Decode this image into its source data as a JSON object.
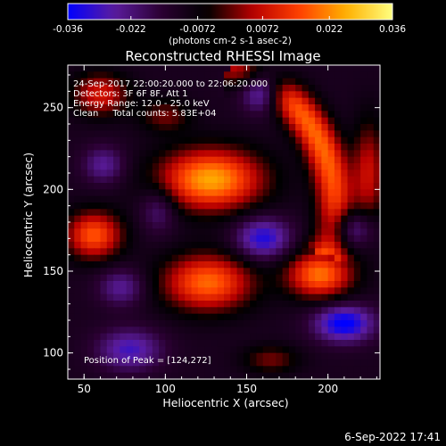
{
  "chart_data": {
    "type": "heatmap",
    "title": "Reconstructed RHESSI Image",
    "xlabel": "Heliocentric X (arcsec)",
    "ylabel": "Heliocentric Y (arcsec)",
    "xlim": [
      40,
      232
    ],
    "ylim": [
      84,
      276
    ],
    "xticks": [
      50,
      100,
      150,
      200
    ],
    "yticks": [
      100,
      150,
      200,
      250
    ],
    "colorbar": {
      "range": [
        -0.036,
        0.036
      ],
      "tick_labels": [
        "-0.036",
        "-0.022",
        "-0.0072",
        "0.0072",
        "0.022",
        "0.036"
      ],
      "tick_values": [
        -0.036,
        -0.022,
        -0.0072,
        0.0072,
        0.022,
        0.036
      ],
      "units_label": "(photons cm-2 s-1 asec-2)",
      "colormap": [
        "#0000ff",
        "#5b1c9e",
        "#2b0033",
        "#000000",
        "#b80000",
        "#ff4000",
        "#ffb000",
        "#ffff80"
      ]
    },
    "annotations": [
      "24-Sep-2017 22:00:20.000 to 22:06:20.000",
      "Detectors: 3F 6F 8F, Att 1",
      "Energy Range: 12.0 - 25.0 keV",
      "Clean     Total counts: 5.83E+04"
    ],
    "peak_label": "Position of Peak = [124,272]",
    "peak": {
      "x": 124,
      "y": 272
    },
    "sources": [
      {
        "x": 128,
        "y": 206,
        "sx": 22,
        "sy": 13,
        "amp": 0.036
      },
      {
        "x": 195,
        "y": 148,
        "sx": 14,
        "sy": 10,
        "amp": 0.031
      },
      {
        "x": 126,
        "y": 143,
        "sx": 19,
        "sy": 12,
        "amp": 0.03
      },
      {
        "x": 56,
        "y": 172,
        "sx": 12,
        "sy": 10,
        "amp": 0.028
      },
      {
        "x": 60,
        "y": 258,
        "sx": 12,
        "sy": 9,
        "amp": 0.02
      },
      {
        "x": 100,
        "y": 245,
        "sx": 11,
        "sy": 7,
        "amp": 0.012
      },
      {
        "x": 165,
        "y": 96,
        "sx": 12,
        "sy": 6,
        "amp": 0.012
      },
      {
        "x": 225,
        "y": 210,
        "sx": 7,
        "sy": 22,
        "amp": 0.018
      },
      {
        "x": 160,
        "y": 262,
        "sx": 9,
        "sy": 9,
        "amp": -0.03
      },
      {
        "x": 160,
        "y": 170,
        "sx": 12,
        "sy": 9,
        "amp": -0.022
      },
      {
        "x": 210,
        "y": 118,
        "sx": 13,
        "sy": 8,
        "amp": -0.026
      },
      {
        "x": 78,
        "y": 102,
        "sx": 14,
        "sy": 9,
        "amp": -0.018
      },
      {
        "x": 215,
        "y": 176,
        "sx": 10,
        "sy": 8,
        "amp": -0.016
      },
      {
        "x": 62,
        "y": 215,
        "sx": 9,
        "sy": 8,
        "amp": -0.014
      },
      {
        "x": 73,
        "y": 140,
        "sx": 10,
        "sy": 8,
        "amp": -0.014
      },
      {
        "x": 96,
        "y": 188,
        "sx": 8,
        "sy": 10,
        "amp": -0.012
      }
    ],
    "arc": {
      "cx": 116,
      "cy": 190,
      "radius": 88,
      "width": 8,
      "amp": 0.03,
      "start_deg": -20,
      "end_deg": 75
    },
    "background": -0.011
  },
  "footer": {
    "timestamp": "6-Sep-2022 17:41"
  }
}
